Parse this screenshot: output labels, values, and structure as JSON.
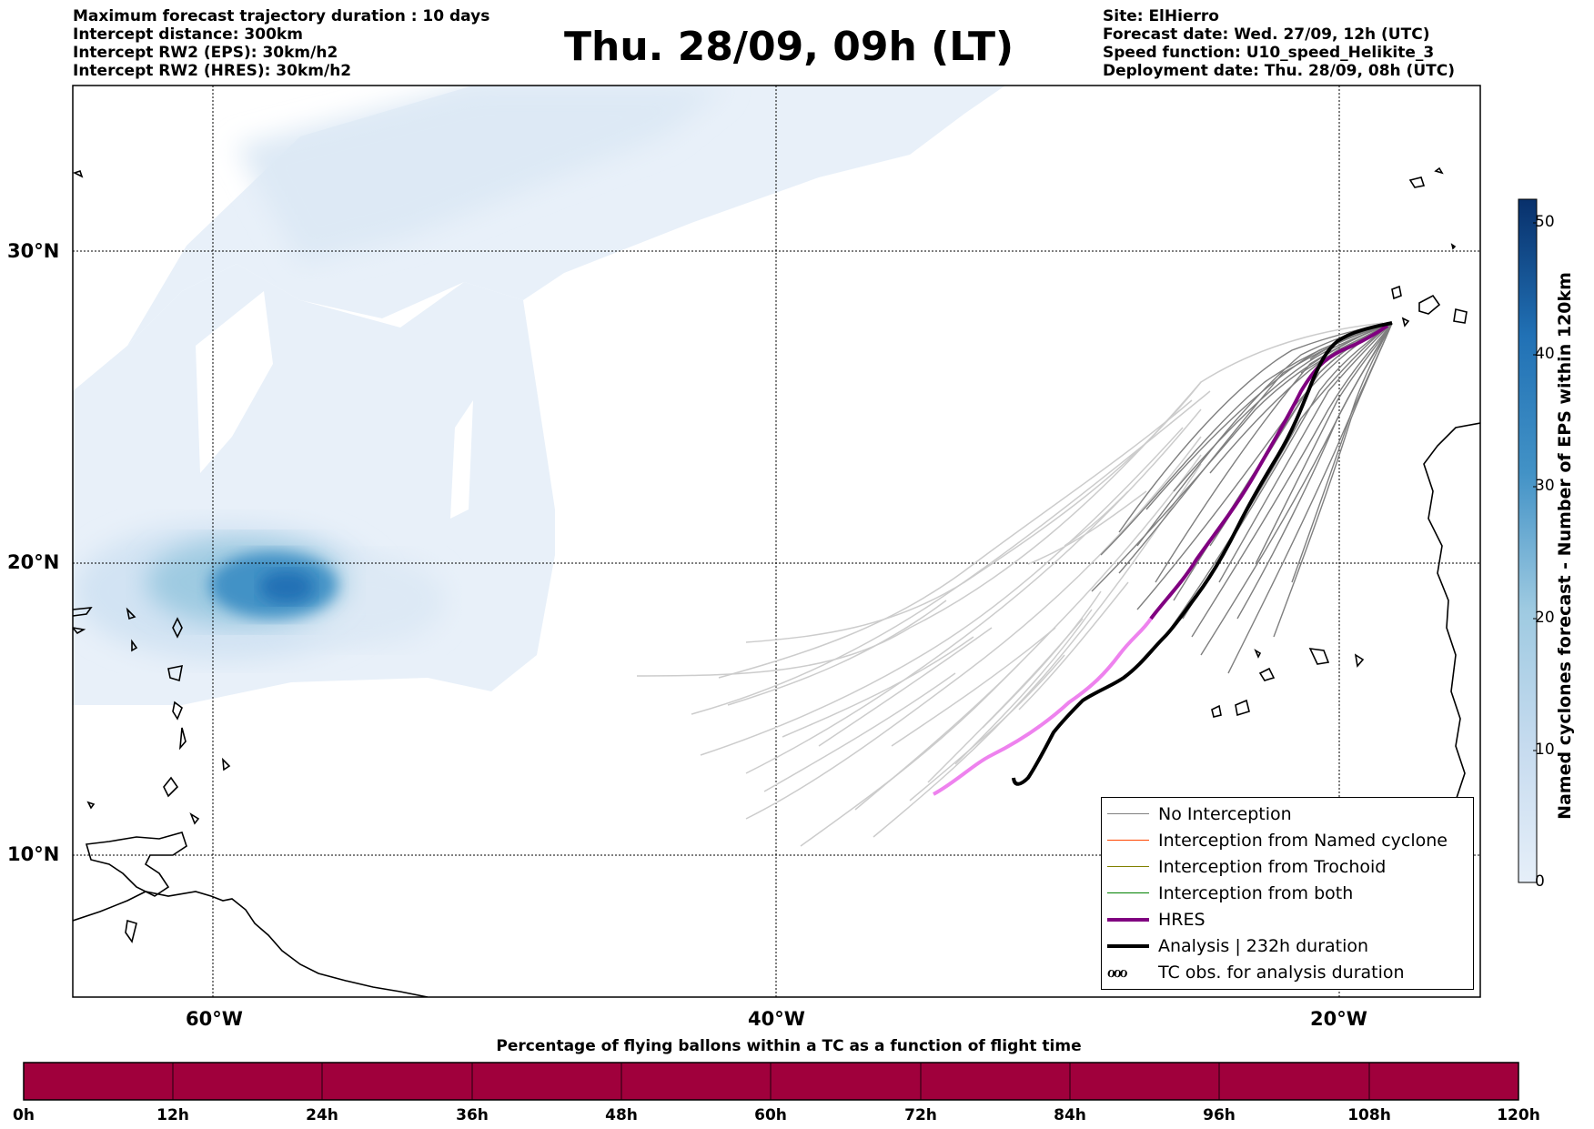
{
  "header_left": {
    "line1": "Maximum forecast trajectory duration : 10 days",
    "line2": "Intercept distance: 300km",
    "line3": "Intercept RW2 (EPS):  30km/h2",
    "line4": "Intercept RW2 (HRES): 30km/h2"
  },
  "title": "Thu. 28/09, 09h (LT)",
  "header_right": {
    "site": "Site: ElHierro",
    "forecast_date": "Forecast date: Wed. 27/09, 12h (UTC)",
    "speed_function": "Speed function: U10_speed_Helikite_3",
    "deployment_date": "Deployment date: Thu. 28/09, 08h (UTC)"
  },
  "map": {
    "lat_labels": [
      "30°N",
      "20°N",
      "10°N"
    ],
    "lon_labels": [
      "60°W",
      "40°W",
      "20°W"
    ],
    "colors": {
      "eps_track": "#808080",
      "ensemble_member": "#c8c8c8",
      "hres_track": "#800080",
      "hres_early": "#ee82ee",
      "analysis_track": "#000000",
      "named_cyclone": "#ff4500",
      "trochoid": "#808000",
      "both": "#008000"
    }
  },
  "legend": {
    "items": [
      {
        "label": "No Interception",
        "color": "#808080"
      },
      {
        "label": "Interception from Named cyclone",
        "color": "#ff4500"
      },
      {
        "label": "Interception from Trochoid",
        "color": "#808000"
      },
      {
        "label": "Interception from both",
        "color": "#008000"
      },
      {
        "label": "HRES",
        "color": "#800080"
      },
      {
        "label": "Analysis | 232h duration",
        "color": "#000000"
      },
      {
        "label": "TC obs. for analysis duration",
        "symbol": "ℴℴℴ"
      }
    ]
  },
  "colorbar": {
    "label": "Named cyclones forecast - Number of EPS within 120km",
    "ticks": [
      "0",
      "10",
      "20",
      "30",
      "40",
      "50"
    ],
    "color_low": "#e6eff9",
    "color_high": "#08306b"
  },
  "time_bar": {
    "title": "Percentage of flying ballons within a TC as a function of flight time",
    "ticks": [
      "0h",
      "12h",
      "24h",
      "36h",
      "48h",
      "60h",
      "72h",
      "84h",
      "96h",
      "108h",
      "120h"
    ],
    "fill_color": "#a0003c"
  }
}
